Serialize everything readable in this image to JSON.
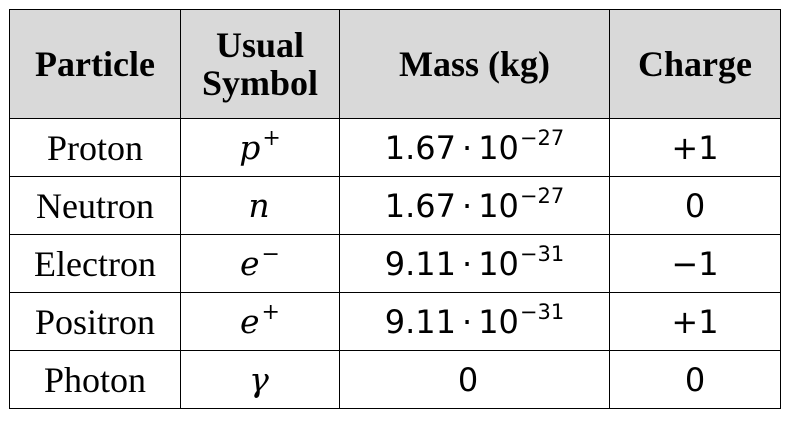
{
  "table": {
    "headers": {
      "particle": "Particle",
      "symbol_line1": "Usual",
      "symbol_line2": "Symbol",
      "mass": "Mass (kg)",
      "charge": "Charge"
    },
    "rows": [
      {
        "particle": "Proton",
        "symbol_base": "p",
        "symbol_sup": "+",
        "mass": "",
        "mass_mantissa": "1.67",
        "mass_dot": "·",
        "mass_base": "10",
        "mass_exp": "−27",
        "charge": "+1"
      },
      {
        "particle": "Neutron",
        "symbol_base": "n",
        "symbol_sup": "",
        "mass": "",
        "mass_mantissa": "1.67",
        "mass_dot": "·",
        "mass_base": "10",
        "mass_exp": "−27",
        "charge": "0"
      },
      {
        "particle": "Electron",
        "symbol_base": "e",
        "symbol_sup": "−",
        "mass": "",
        "mass_mantissa": "9.11",
        "mass_dot": "·",
        "mass_base": "10",
        "mass_exp": "−31",
        "charge": "−1"
      },
      {
        "particle": "Positron",
        "symbol_base": "e",
        "symbol_sup": "+",
        "mass": "",
        "mass_mantissa": "9.11",
        "mass_dot": "·",
        "mass_base": "10",
        "mass_exp": "−31",
        "charge": "+1"
      },
      {
        "particle": "Photon",
        "symbol_base": "γ",
        "symbol_sup": "",
        "mass": "0",
        "mass_mantissa": "",
        "mass_dot": "",
        "mass_base": "",
        "mass_exp": "",
        "charge": "0"
      }
    ]
  },
  "colors": {
    "header_background": "#d9d9d9",
    "border": "#000000",
    "text": "#000000"
  }
}
